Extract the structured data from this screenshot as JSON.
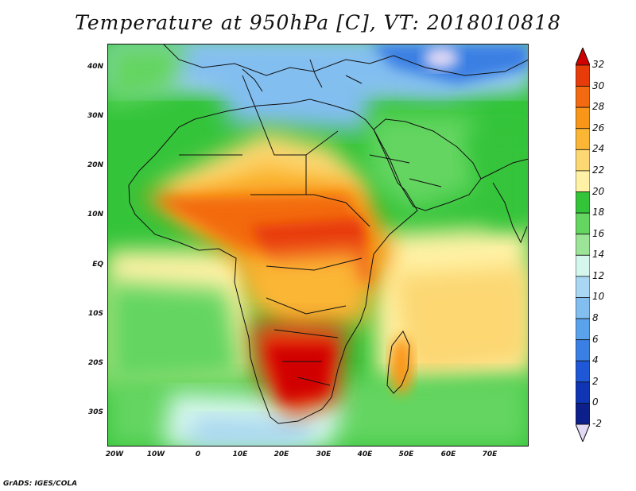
{
  "title": "Temperature at 950hPa [C], VT: 2018010818",
  "credit": "GrADS: IGES/COLA",
  "map": {
    "lat_ticks": [
      "40N",
      "30N",
      "20N",
      "10N",
      "EQ",
      "10S",
      "20S",
      "30S"
    ],
    "lon_ticks": [
      "20W",
      "10W",
      "0",
      "10E",
      "20E",
      "30E",
      "40E",
      "50E",
      "60E",
      "70E"
    ]
  },
  "colorbar": {
    "labels": [
      "32",
      "30",
      "28",
      "26",
      "24",
      "22",
      "20",
      "18",
      "16",
      "14",
      "12",
      "10",
      "8",
      "6",
      "4",
      "2",
      "0",
      "-2"
    ],
    "colors": [
      "#d10000",
      "#e83b0a",
      "#f36a10",
      "#f99518",
      "#fbb635",
      "#fcd772",
      "#fff2a6",
      "#34c43a",
      "#64d560",
      "#9ce497",
      "#d4f6ec",
      "#a9d6f3",
      "#82bef0",
      "#5ba2ec",
      "#3a7fe3",
      "#1f58d6",
      "#0f35b5",
      "#0c1f8a",
      "#e1d9f5"
    ]
  }
}
